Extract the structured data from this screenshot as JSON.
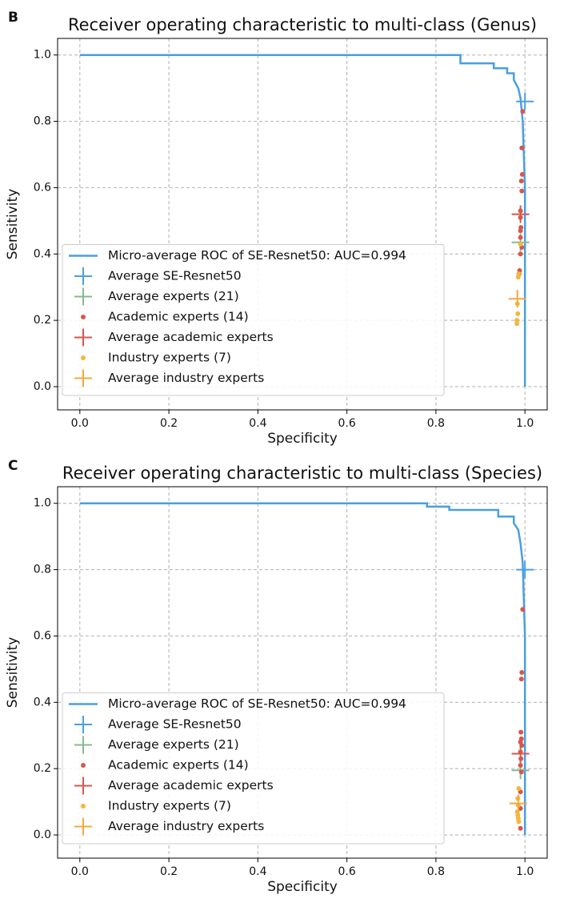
{
  "chart_data": [
    {
      "type": "line",
      "panel": "B",
      "title": "Receiver operating characteristic to multi-class (Genus)",
      "xlabel": "Specificity",
      "ylabel": "Sensitivity",
      "xlim": [
        -0.05,
        1.05
      ],
      "ylim": [
        -0.07,
        1.05
      ],
      "xticks": [
        {
          "value": 0,
          "label": "0.0"
        },
        0.2,
        0.4,
        0.6,
        0.8,
        {
          "value": 1,
          "label": "1.0"
        }
      ],
      "yticks": [
        {
          "value": 0,
          "label": "0.0"
        },
        0.2,
        0.4,
        0.6,
        0.8,
        {
          "value": 1,
          "label": "1.0"
        }
      ],
      "grid": true,
      "legend": "lower left",
      "series": [
        {
          "name": "Micro-average ROC of SE-Resnet50: AUC=0.994",
          "color": "#4a9fe0",
          "marker": "line",
          "x": [
            0,
            0.855,
            0.855,
            0.93,
            0.93,
            0.96,
            0.96,
            0.975,
            0.975,
            0.985,
            0.99,
            0.995,
            1.0,
            1.0
          ],
          "values": [
            1,
            1,
            0.975,
            0.975,
            0.96,
            0.96,
            0.945,
            0.945,
            0.925,
            0.9,
            0.87,
            0.8,
            0.6,
            0
          ]
        },
        {
          "name": "Average SE-Resnet50",
          "color": "#4a9fe0",
          "marker": "plus",
          "x": [
            1.0
          ],
          "values": [
            0.86
          ]
        },
        {
          "name": "Average experts (21)",
          "color": "#86b98f",
          "marker": "plus",
          "x": [
            0.99
          ],
          "values": [
            0.435
          ]
        },
        {
          "name": "Academic experts (14)",
          "color": "#d6574b",
          "marker": "dot",
          "x": [
            0.995,
            0.993,
            0.994,
            0.992,
            0.993,
            0.99,
            0.991,
            0.99,
            0.99,
            0.993,
            0.99,
            0.988,
            0.987,
            0.99
          ],
          "values": [
            0.83,
            0.72,
            0.64,
            0.62,
            0.59,
            0.51,
            0.48,
            0.47,
            0.45,
            0.42,
            0.4,
            0.35,
            0.34,
            0.53
          ]
        },
        {
          "name": "Average academic experts",
          "color": "#d6574b",
          "marker": "plus",
          "x": [
            0.99
          ],
          "values": [
            0.52
          ]
        },
        {
          "name": "Industry experts (7)",
          "color": "#f4b63f",
          "marker": "dot",
          "x": [
            0.985,
            0.983,
            0.984,
            0.982,
            0.982,
            0.986,
            0.99
          ],
          "values": [
            0.33,
            0.25,
            0.22,
            0.2,
            0.19,
            0.34,
            0.43
          ]
        },
        {
          "name": "Average industry experts",
          "color": "#f4a93a",
          "marker": "plus",
          "x": [
            0.983
          ],
          "values": [
            0.265
          ]
        }
      ]
    },
    {
      "type": "line",
      "panel": "C",
      "title": "Receiver operating characteristic to multi-class (Species)",
      "xlabel": "Specificity",
      "ylabel": "Sensitivity",
      "xlim": [
        -0.05,
        1.05
      ],
      "ylim": [
        -0.07,
        1.05
      ],
      "xticks": [
        {
          "value": 0,
          "label": "0.0"
        },
        0.2,
        0.4,
        0.6,
        0.8,
        {
          "value": 1,
          "label": "1.0"
        }
      ],
      "yticks": [
        {
          "value": 0,
          "label": "0.0"
        },
        0.2,
        0.4,
        0.6,
        0.8,
        {
          "value": 1,
          "label": "1.0"
        }
      ],
      "grid": true,
      "legend": "lower left",
      "series": [
        {
          "name": "Micro-average ROC of SE-Resnet50: AUC=0.994",
          "color": "#4a9fe0",
          "marker": "line",
          "x": [
            0,
            0.78,
            0.78,
            0.83,
            0.83,
            0.94,
            0.94,
            0.975,
            0.975,
            0.985,
            0.99,
            0.995,
            1.0,
            1.0
          ],
          "values": [
            1,
            1,
            0.99,
            0.99,
            0.98,
            0.98,
            0.96,
            0.96,
            0.94,
            0.92,
            0.88,
            0.82,
            0.6,
            0
          ]
        },
        {
          "name": "Average SE-Resnet50",
          "color": "#4a9fe0",
          "marker": "plus",
          "x": [
            1.0
          ],
          "values": [
            0.8
          ]
        },
        {
          "name": "Average experts (21)",
          "color": "#86b98f",
          "marker": "plus",
          "x": [
            0.99
          ],
          "values": [
            0.195
          ]
        },
        {
          "name": "Academic experts (14)",
          "color": "#d6574b",
          "marker": "dot",
          "x": [
            0.995,
            0.993,
            0.992,
            0.991,
            0.992,
            0.99,
            0.993,
            0.99,
            0.991,
            0.99,
            0.992,
            0.99,
            0.99,
            0.99
          ],
          "values": [
            0.68,
            0.49,
            0.47,
            0.31,
            0.29,
            0.28,
            0.27,
            0.25,
            0.23,
            0.21,
            0.19,
            0.13,
            0.08,
            0.02
          ]
        },
        {
          "name": "Average academic experts",
          "color": "#d6574b",
          "marker": "plus",
          "x": [
            0.99
          ],
          "values": [
            0.245
          ]
        },
        {
          "name": "Industry experts (7)",
          "color": "#f4b63f",
          "marker": "dot",
          "x": [
            0.986,
            0.984,
            0.985,
            0.983,
            0.984,
            0.985,
            0.986
          ],
          "values": [
            0.14,
            0.11,
            0.09,
            0.07,
            0.06,
            0.05,
            0.04
          ]
        },
        {
          "name": "Average industry experts",
          "color": "#f4a93a",
          "marker": "plus",
          "x": [
            0.985
          ],
          "values": [
            0.095
          ]
        }
      ]
    }
  ]
}
